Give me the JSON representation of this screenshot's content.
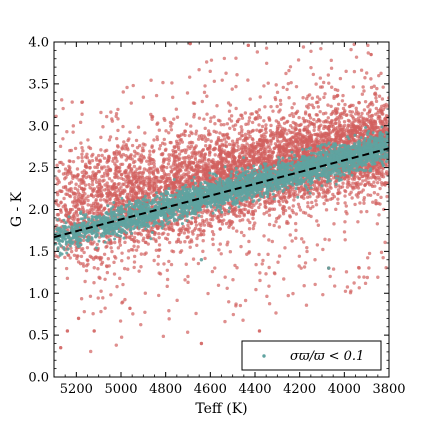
{
  "chart_data": {
    "type": "scatter",
    "xlabel": "Teff (K)",
    "ylabel": "G - K",
    "x_inverted": true,
    "xlim": [
      5300,
      3800
    ],
    "ylim": [
      0.0,
      4.0
    ],
    "xticks": [
      5200,
      5000,
      4800,
      4600,
      4400,
      4200,
      4000,
      3800
    ],
    "xtick_labels": [
      "5200",
      "5000",
      "4800",
      "4600",
      "4400",
      "4200",
      "4000",
      "3800"
    ],
    "yticks": [
      0.0,
      0.5,
      1.0,
      1.5,
      2.0,
      2.5,
      3.0,
      3.5,
      4.0
    ],
    "ytick_labels": [
      "0.0",
      "0.5",
      "1.0",
      "1.5",
      "2.0",
      "2.5",
      "3.0",
      "3.5",
      "4.0"
    ],
    "grid": false,
    "legend_position": "lower-right",
    "series": [
      {
        "color": "#d1605e",
        "point_count_approx": 6000,
        "trend": {
          "teff": [
            5300,
            3800
          ],
          "g_minus_k": [
            1.95,
            2.8
          ]
        },
        "spread_sd": 0.35,
        "outlier_fraction": 0.08,
        "samples": [
          {
            "x": 5270,
            "y": 0.35
          },
          {
            "x": 5240,
            "y": 0.55
          },
          {
            "x": 5190,
            "y": 0.7
          },
          {
            "x": 5120,
            "y": 0.55
          },
          {
            "x": 4960,
            "y": 0.82
          },
          {
            "x": 4640,
            "y": 0.4
          },
          {
            "x": 4380,
            "y": 0.55
          },
          {
            "x": 4070,
            "y": 1.3
          },
          {
            "x": 4690,
            "y": 3.98
          },
          {
            "x": 4430,
            "y": 3.96
          },
          {
            "x": 3880,
            "y": 3.85
          }
        ]
      },
      {
        "name": "σϖ/ϖ < 0.1",
        "color": "#5fa3a0",
        "point_count_approx": 3500,
        "trend": {
          "teff": [
            5300,
            3800
          ],
          "g_minus_k": [
            1.65,
            2.75
          ]
        },
        "spread_sd": 0.09,
        "samples": [
          {
            "x": 4640,
            "y": 1.4
          },
          {
            "x": 4070,
            "y": 1.3
          }
        ]
      }
    ],
    "fit_line": {
      "style": "dashed",
      "color": "#000000",
      "x": [
        5300,
        3800
      ],
      "y": [
        1.67,
        2.73
      ]
    },
    "legend": {
      "label": "σϖ/ϖ < 0.1",
      "marker_color": "#5fa3a0"
    }
  }
}
